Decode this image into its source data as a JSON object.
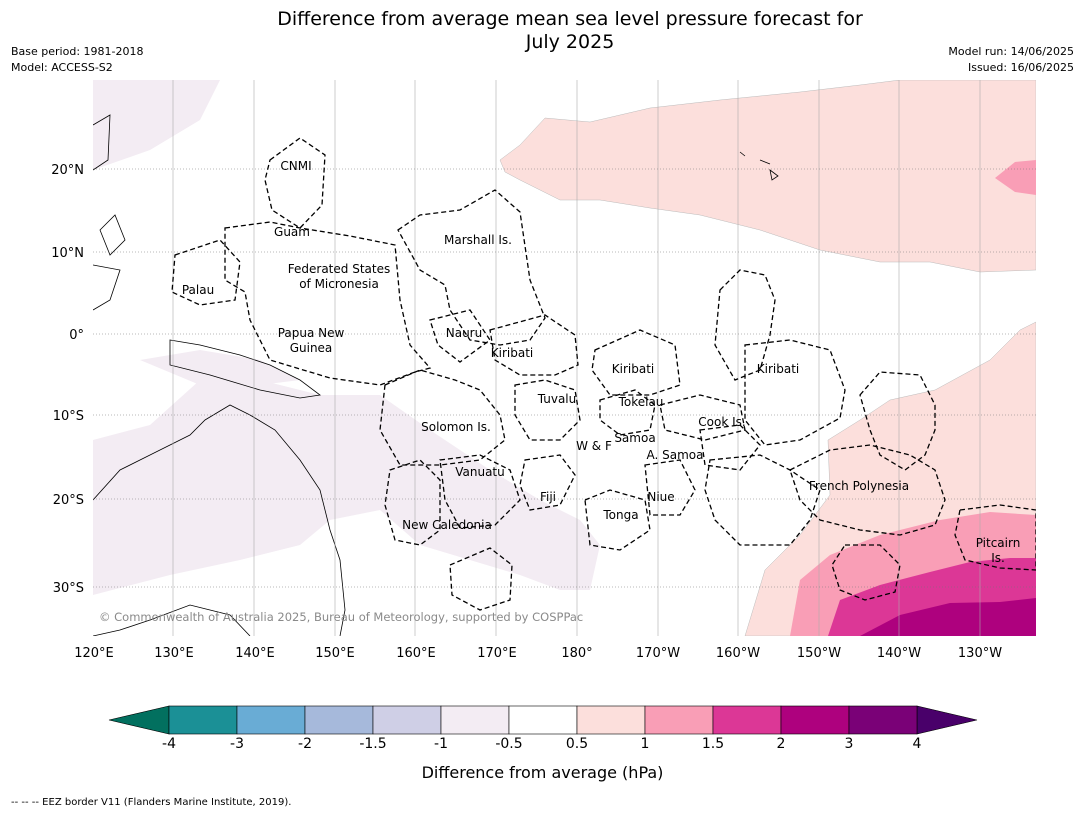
{
  "title_line1": "Difference from average mean sea level pressure forecast for",
  "title_line2": "July 2025",
  "meta": {
    "base_period": "Base period: 1981-2018",
    "model": "Model: ACCESS-S2",
    "model_run": "Model run: 14/06/2025",
    "issued": "Issued: 16/06/2025"
  },
  "copyright": "© Commonwealth of Australia 2025, Bureau of Meteorology, supported by COSPPac",
  "lon_labels": [
    "120°E",
    "130°E",
    "140°E",
    "150°E",
    "160°E",
    "170°E",
    "180°",
    "170°W",
    "160°W",
    "150°W",
    "140°W",
    "130°W"
  ],
  "lat_labels": [
    "20°N",
    "10°N",
    "0°",
    "10°S",
    "20°S",
    "30°S"
  ],
  "regions": {
    "cnmi": "CNMI",
    "guam": "Guam",
    "marshall": "Marshall Is.",
    "fsm1": "Federated States",
    "fsm2": "of Micronesia",
    "palau": "Palau",
    "png1": "Papua New",
    "png2": "Guinea",
    "nauru": "Nauru",
    "kiribati_w": "Kiribati",
    "kiribati_c": "Kiribati",
    "kiribati_e": "Kiribati",
    "tuvalu": "Tuvalu",
    "tokelau": "Tokelau",
    "cook": "Cook Is.",
    "solomon": "Solomon Is.",
    "samoa": "Samoa",
    "wf": "W & F",
    "asamoa": "A. Samoa",
    "vanuatu": "Vanuatu",
    "fiji": "Fiji",
    "niue": "Niue",
    "tonga": "Tonga",
    "french_poly": "French Polynesia",
    "newcal": "New Caledonia",
    "pitcairn1": "Pitcairn",
    "pitcairn2": "Is."
  },
  "colorbar": {
    "title": "Difference from average (hPa)",
    "ticks": [
      "-4",
      "-3",
      "-2",
      "-1.5",
      "-1",
      "-0.5",
      "0.5",
      "1",
      "1.5",
      "2",
      "3",
      "4"
    ],
    "colors": [
      "#1b9096",
      "#69acd5",
      "#a6b9db",
      "#cfcfe6",
      "#f3ecf3",
      "#ffffff",
      "#fcdfdc",
      "#f99eb6",
      "#dc3796",
      "#ae017e",
      "#7a0177"
    ],
    "under_color": "#02705f",
    "over_color": "#49006a"
  },
  "footer": "--  --  -- EEZ border V11 (Flanders Marine Institute, 2019)."
}
